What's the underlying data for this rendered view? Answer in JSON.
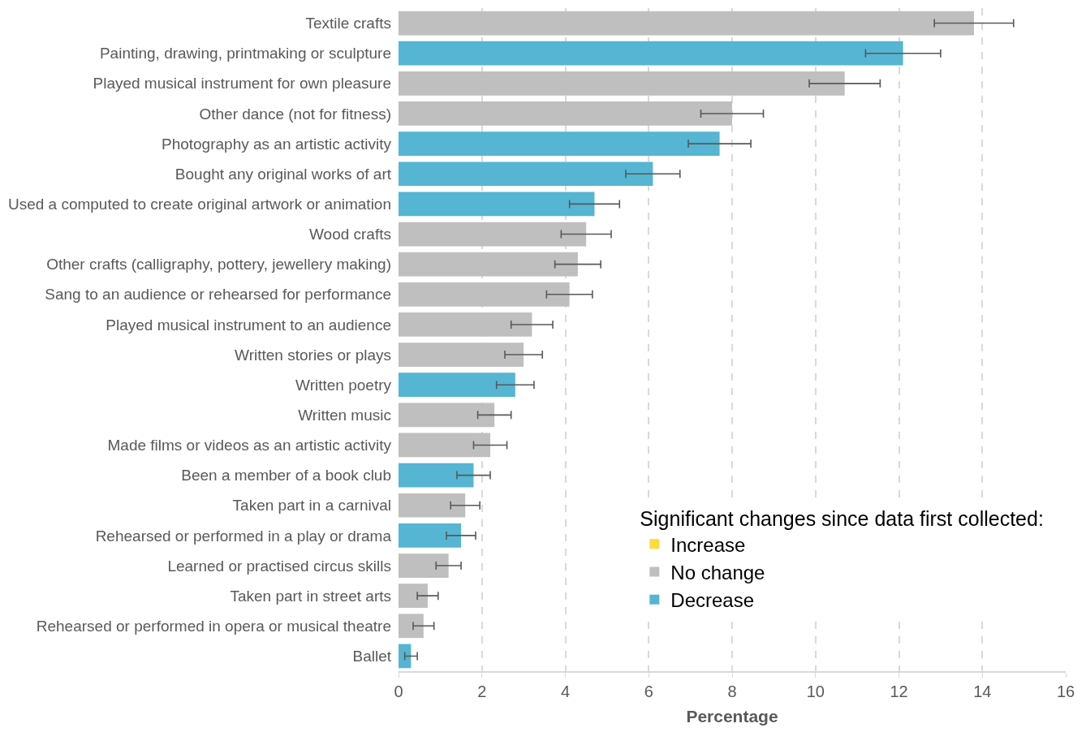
{
  "chart_data": {
    "type": "bar",
    "orientation": "horizontal",
    "xlabel": "Percentage",
    "legend_title": "Significant changes since data first collected:",
    "categories": [
      "Textile crafts",
      "Painting, drawing, printmaking or sculpture",
      "Played musical instrument for own pleasure",
      "Other dance (not for fitness)",
      "Photography as an artistic activity",
      "Bought any original works of art",
      "Used a computed to create original artwork or animation",
      "Wood crafts",
      "Other crafts (calligraphy, pottery, jewellery making)",
      "Sang to an audience or rehearsed for performance",
      "Played musical instrument to an audience",
      "Written stories or plays",
      "Written poetry",
      "Written music",
      "Made films or videos as an artistic activity",
      "Been a member of a book club",
      "Taken part in a carnival",
      "Rehearsed or performed in a play or drama",
      "Learned or practised circus skills",
      "Taken part in street arts",
      "Rehearsed or performed in opera or musical theatre",
      "Ballet"
    ],
    "series": [
      {
        "name": "Increase",
        "color": "#ffd93f",
        "values": [
          null,
          null,
          null,
          null,
          null,
          null,
          null,
          null,
          null,
          null,
          null,
          null,
          null,
          null,
          null,
          null,
          null,
          null,
          null,
          null,
          null,
          null
        ],
        "errors": [
          null,
          null,
          null,
          null,
          null,
          null,
          null,
          null,
          null,
          null,
          null,
          null,
          null,
          null,
          null,
          null,
          null,
          null,
          null,
          null,
          null,
          null
        ]
      },
      {
        "name": "No change",
        "color": "#bfbfbf",
        "values": [
          13.8,
          null,
          10.7,
          8.0,
          null,
          null,
          null,
          4.5,
          4.3,
          4.1,
          3.2,
          3.0,
          null,
          2.3,
          2.2,
          null,
          1.6,
          null,
          1.2,
          0.7,
          0.6,
          null
        ],
        "errors": [
          0.95,
          null,
          0.85,
          0.75,
          null,
          null,
          null,
          0.6,
          0.55,
          0.55,
          0.5,
          0.45,
          null,
          0.4,
          0.4,
          null,
          0.35,
          null,
          0.3,
          0.25,
          0.25,
          null
        ]
      },
      {
        "name": "Decrease",
        "color": "#55b5d2",
        "values": [
          null,
          12.1,
          null,
          null,
          7.7,
          6.1,
          4.7,
          null,
          null,
          null,
          null,
          null,
          2.8,
          null,
          null,
          1.8,
          null,
          1.5,
          null,
          null,
          null,
          0.3
        ],
        "errors": [
          null,
          0.9,
          null,
          null,
          0.75,
          0.65,
          0.6,
          null,
          null,
          null,
          null,
          null,
          0.45,
          null,
          null,
          0.4,
          null,
          0.35,
          null,
          null,
          null,
          0.15
        ]
      }
    ],
    "xlim": [
      0,
      16
    ],
    "xticks": [
      0,
      2,
      4,
      6,
      8,
      10,
      12,
      14,
      16
    ],
    "grid": "x",
    "legend": "bottom right"
  }
}
